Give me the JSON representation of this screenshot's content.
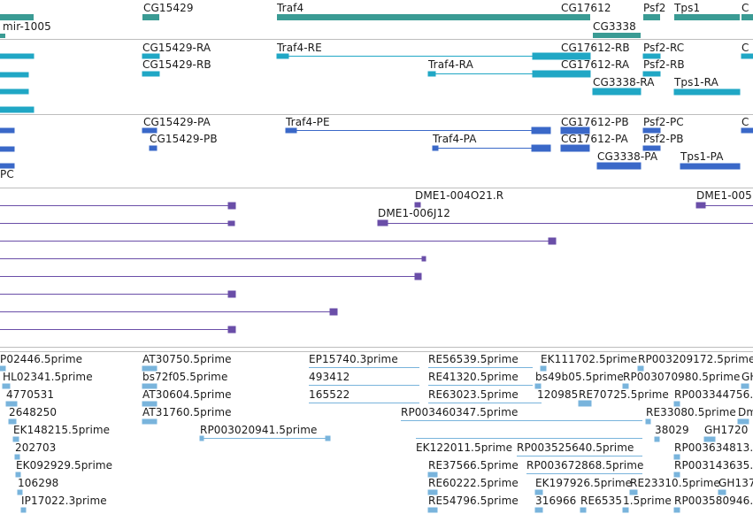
{
  "colors": {
    "gene": "#3a9b94",
    "mrna": "#20a7c5",
    "protein": "#3a68c8",
    "alignment": "#6a4ea8",
    "est": "#79b4dc",
    "divider": "#bdbdbd"
  },
  "tracks": {
    "genes": {
      "labels": [
        "mir-1005",
        "CG15429",
        "Traf4",
        "CG17612",
        "CG3338",
        "Psf2",
        "Tps1",
        "C"
      ]
    },
    "transcripts": {
      "labels": [
        "CG15429-RA",
        "CG15429-RB",
        "Traf4-RE",
        "Traf4-RA",
        "CG17612-RB",
        "CG17612-RA",
        "Psf2-RC",
        "Psf2-RB",
        "CG3338-RA",
        "Tps1-RA",
        "C"
      ]
    },
    "proteins": {
      "labels": [
        "PC",
        "CG15429-PA",
        "CG15429-PB",
        "Traf4-PE",
        "Traf4-PA",
        "CG17612-PB",
        "CG17612-PA",
        "Psf2-PC",
        "Psf2-PB",
        "CG3338-PA",
        "Tps1-PA",
        "C"
      ]
    },
    "alignments": {
      "labels": [
        "DME1-004O21.R",
        "DME1-006J12",
        "DME1-005"
      ]
    },
    "ests": {
      "labels": [
        "P02446.5prime",
        "HL02341.5prime",
        "4770531",
        "2648250",
        "EK148215.5prime",
        "202703",
        "EK092929.5prime",
        "106298",
        "IP17022.3prime",
        "AT30750.5prime",
        "bs72f05.5prime",
        "AT30604.5prime",
        "AT31760.5prime",
        "RP003020941.5prime",
        "EP15740.3prime",
        "493412",
        "165522",
        "RE56539.5prime",
        "RE41320.5prime",
        "RE63023.5prime",
        "RP003460347.5prime",
        "EK122011.5prime",
        "RE37566.5prime",
        "RE60222.5prime",
        "RE54796.5prime",
        "RP003525640.5prime",
        "RP003672868.5prime",
        "EK111702.5prime",
        "bs49b05.5prime",
        "120985",
        "RE70725.5prime",
        "EK197926.5prime",
        "316966",
        "RE6535",
        "1.5prime",
        "RE23310.5prime",
        "RP003209172.5prime",
        "RP003070980.5prime",
        "RP003344756.",
        "RE33080.5prime",
        "38029",
        "RP003634813.",
        "RP003143635.",
        "RP003580946.",
        "GH",
        "Dm",
        "GH1720",
        "GH137"
      ]
    }
  }
}
